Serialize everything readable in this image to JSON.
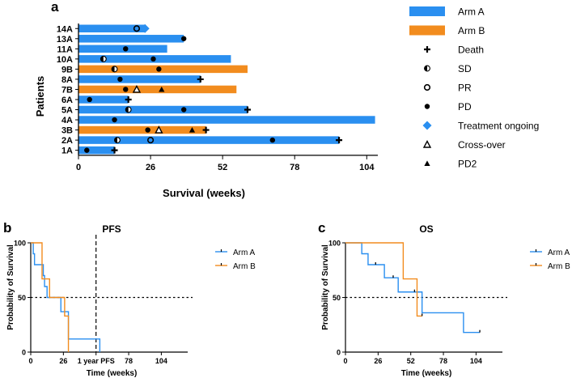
{
  "colors": {
    "arm_a": "#2a8ff0",
    "arm_b": "#f28c1e",
    "ink": "#000000"
  },
  "chart_data": [
    {
      "id": "a",
      "panel_label": "a",
      "type": "swimmer",
      "xlabel": "Survival (weeks)",
      "ylabel": "Patients",
      "xticks": [
        0,
        26,
        52,
        78,
        104
      ],
      "xlim": [
        0,
        108
      ],
      "patients": [
        {
          "label": "14A",
          "arm": "A",
          "weeks": 24
        },
        {
          "label": "13A",
          "arm": "A",
          "weeks": 38
        },
        {
          "label": "11A",
          "arm": "A",
          "weeks": 32
        },
        {
          "label": "10A",
          "arm": "A",
          "weeks": 55
        },
        {
          "label": "9B",
          "arm": "B",
          "weeks": 61
        },
        {
          "label": "8A",
          "arm": "A",
          "weeks": 44
        },
        {
          "label": "7B",
          "arm": "B",
          "weeks": 57
        },
        {
          "label": "6A",
          "arm": "A",
          "weeks": 18
        },
        {
          "label": "5A",
          "arm": "A",
          "weeks": 61
        },
        {
          "label": "4A",
          "arm": "A",
          "weeks": 107
        },
        {
          "label": "3B",
          "arm": "B",
          "weeks": 46
        },
        {
          "label": "2A",
          "arm": "A",
          "weeks": 94
        },
        {
          "label": "1A",
          "arm": "A",
          "weeks": 13
        }
      ],
      "events": [
        {
          "patient": "14A",
          "type": "pr",
          "week": 21
        },
        {
          "patient": "14A",
          "type": "ongoing",
          "week": 24
        },
        {
          "patient": "13A",
          "type": "pd",
          "week": 38
        },
        {
          "patient": "11A",
          "type": "pd",
          "week": 17
        },
        {
          "patient": "10A",
          "type": "sd",
          "week": 9
        },
        {
          "patient": "10A",
          "type": "pd",
          "week": 27
        },
        {
          "patient": "9B",
          "type": "sd",
          "week": 13
        },
        {
          "patient": "9B",
          "type": "pd",
          "week": 29
        },
        {
          "patient": "8A",
          "type": "pd",
          "week": 15
        },
        {
          "patient": "8A",
          "type": "death",
          "week": 44
        },
        {
          "patient": "7B",
          "type": "pd",
          "week": 17
        },
        {
          "patient": "7B",
          "type": "crossover",
          "week": 21
        },
        {
          "patient": "7B",
          "type": "pd2",
          "week": 30
        },
        {
          "patient": "6A",
          "type": "pd",
          "week": 4
        },
        {
          "patient": "6A",
          "type": "death",
          "week": 18
        },
        {
          "patient": "5A",
          "type": "sd",
          "week": 18
        },
        {
          "patient": "5A",
          "type": "pd",
          "week": 38
        },
        {
          "patient": "5A",
          "type": "death",
          "week": 61
        },
        {
          "patient": "4A",
          "type": "pd",
          "week": 13
        },
        {
          "patient": "3B",
          "type": "pd",
          "week": 25
        },
        {
          "patient": "3B",
          "type": "crossover",
          "week": 29
        },
        {
          "patient": "3B",
          "type": "pd2",
          "week": 41
        },
        {
          "patient": "3B",
          "type": "death",
          "week": 46
        },
        {
          "patient": "2A",
          "type": "sd",
          "week": 14
        },
        {
          "patient": "2A",
          "type": "pr",
          "week": 26
        },
        {
          "patient": "2A",
          "type": "pd",
          "week": 70
        },
        {
          "patient": "2A",
          "type": "death",
          "week": 94
        },
        {
          "patient": "1A",
          "type": "pd",
          "week": 3
        },
        {
          "patient": "1A",
          "type": "death",
          "week": 13
        }
      ],
      "legend": [
        {
          "key": "arm_a",
          "label": "Arm A"
        },
        {
          "key": "arm_b",
          "label": "Arm B"
        },
        {
          "key": "death",
          "label": "Death"
        },
        {
          "key": "sd",
          "label": "SD"
        },
        {
          "key": "pr",
          "label": "PR"
        },
        {
          "key": "pd",
          "label": "PD"
        },
        {
          "key": "ongoing",
          "label": "Treatment ongoing"
        },
        {
          "key": "crossover",
          "label": "Cross-over"
        },
        {
          "key": "pd2",
          "label": "PD2"
        }
      ]
    },
    {
      "id": "b",
      "panel_label": "b",
      "type": "kaplan-meier",
      "title": "PFS",
      "xlabel": "Time (weeks)",
      "ylabel": "Probability of Survival",
      "xlim": [
        0,
        125
      ],
      "ylim": [
        0,
        100
      ],
      "xticks": [
        {
          "value": 0,
          "label": "0"
        },
        {
          "value": 26,
          "label": "26"
        },
        {
          "value": 52,
          "label": "1 year PFS"
        },
        {
          "value": 78,
          "label": "78"
        },
        {
          "value": 104,
          "label": "104"
        }
      ],
      "yticks": [
        0,
        50,
        100
      ],
      "reference_y": 50,
      "reference_x": 52,
      "series": [
        {
          "name": "Arm A",
          "color": "arm_a",
          "steps": [
            [
              0,
              100
            ],
            [
              2,
              100
            ],
            [
              2,
              90
            ],
            [
              3,
              90
            ],
            [
              3,
              80
            ],
            [
              10,
              80
            ],
            [
              10,
              70
            ],
            [
              11,
              70
            ],
            [
              11,
              60
            ],
            [
              13,
              60
            ],
            [
              13,
              50
            ],
            [
              24,
              50
            ],
            [
              24,
              37
            ],
            [
              30,
              37
            ],
            [
              30,
              12
            ],
            [
              55,
              12
            ],
            [
              55,
              0
            ]
          ],
          "censored": []
        },
        {
          "name": "Arm B",
          "color": "arm_b",
          "steps": [
            [
              0,
              100
            ],
            [
              9,
              100
            ],
            [
              9,
              67
            ],
            [
              15,
              67
            ],
            [
              15,
              50
            ],
            [
              27,
              50
            ],
            [
              27,
              33
            ],
            [
              30,
              33
            ],
            [
              30,
              0
            ]
          ],
          "censored": []
        }
      ]
    },
    {
      "id": "c",
      "panel_label": "c",
      "type": "kaplan-meier",
      "title": "OS",
      "xlabel": "Time (weeks)",
      "ylabel": "Probability of Survival",
      "xlim": [
        0,
        125
      ],
      "ylim": [
        0,
        100
      ],
      "xticks": [
        {
          "value": 0,
          "label": "0"
        },
        {
          "value": 26,
          "label": "26"
        },
        {
          "value": 52,
          "label": "52"
        },
        {
          "value": 78,
          "label": "78"
        },
        {
          "value": 104,
          "label": "104"
        }
      ],
      "yticks": [
        0,
        50,
        100
      ],
      "reference_y": 50,
      "series": [
        {
          "name": "Arm A",
          "color": "arm_a",
          "steps": [
            [
              0,
              100
            ],
            [
              13,
              100
            ],
            [
              13,
              90
            ],
            [
              18,
              90
            ],
            [
              18,
              80
            ],
            [
              31,
              80
            ],
            [
              31,
              68
            ],
            [
              42,
              68
            ],
            [
              42,
              55
            ],
            [
              61,
              55
            ],
            [
              61,
              36
            ],
            [
              94,
              36
            ],
            [
              94,
              18
            ],
            [
              107,
              18
            ]
          ],
          "censored": [
            [
              24,
              80
            ],
            [
              38,
              68
            ],
            [
              55,
              55
            ],
            [
              107,
              18
            ]
          ]
        },
        {
          "name": "Arm B",
          "color": "arm_b",
          "steps": [
            [
              0,
              100
            ],
            [
              46,
              100
            ],
            [
              46,
              67
            ],
            [
              57,
              67
            ],
            [
              57,
              33
            ],
            [
              61,
              33
            ]
          ],
          "censored": [
            [
              61,
              33
            ]
          ]
        }
      ]
    }
  ]
}
